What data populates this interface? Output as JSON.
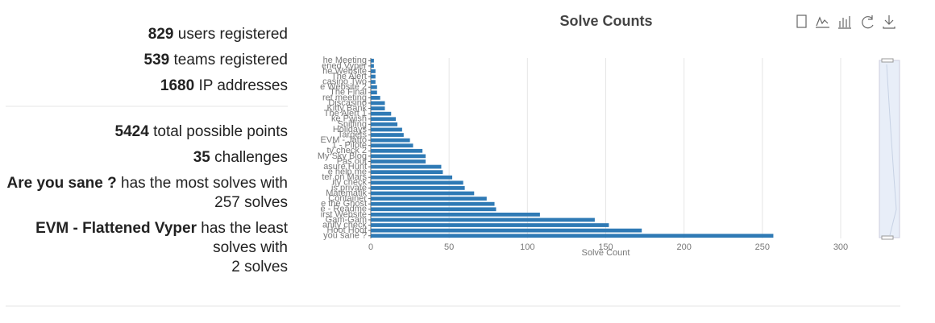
{
  "stats": {
    "lines": [
      {
        "value": 829,
        "text": "users registered"
      },
      {
        "value": 539,
        "text": "teams registered"
      },
      {
        "value": 1680,
        "text": "IP addresses"
      },
      {
        "value": 5424,
        "text": "total possible points"
      },
      {
        "value": 35,
        "text": "challenges"
      }
    ],
    "most": {
      "name": "Are you sane ?",
      "lines": [
        "has the most solves with",
        "257 solves"
      ]
    },
    "least": {
      "name": "EVM - Flattened Vyper",
      "lines": [
        "has the least",
        "solves with",
        "2 solves"
      ]
    }
  },
  "chart_data": {
    "type": "hbar",
    "title": "Solve Counts",
    "x_label": "Solve Count",
    "color": "#2f7ab5",
    "categories": [
      "he Meeting",
      "ened Vyper",
      "he Website",
      "The Alert",
      "casino Two",
      "e Website 2",
      "The Final",
      "ret meeting",
      "Discasino",
      "Kitty Bank",
      "The Alert 1",
      "ke Pwish",
      "Sniffing",
      "Holidays",
      "Targets",
      "EVM - Jatto",
      "1 - Pilote",
      "ty check 2",
      "My Sky Blog",
      "Pas out",
      "asure Hunt",
      "e help me",
      "ter on Mars",
      "ity check",
      "is private",
      "Matematik",
      "Container",
      "e the Ghost",
      "e - Readme",
      "irst Website",
      "Gam-Gam",
      "anity check",
      "Hoot Hoot",
      "you sane ?"
    ],
    "values": [
      2,
      2,
      3,
      3,
      3,
      4,
      4,
      6,
      9,
      9,
      13,
      16,
      17,
      20,
      21,
      25,
      27,
      33,
      35,
      35,
      45,
      46,
      52,
      59,
      60,
      66,
      74,
      79,
      80,
      108,
      143,
      152,
      173,
      257
    ],
    "xlim": [
      0,
      300
    ],
    "xticks": [
      0,
      50,
      100,
      150,
      200,
      250,
      300
    ],
    "grid": true
  }
}
